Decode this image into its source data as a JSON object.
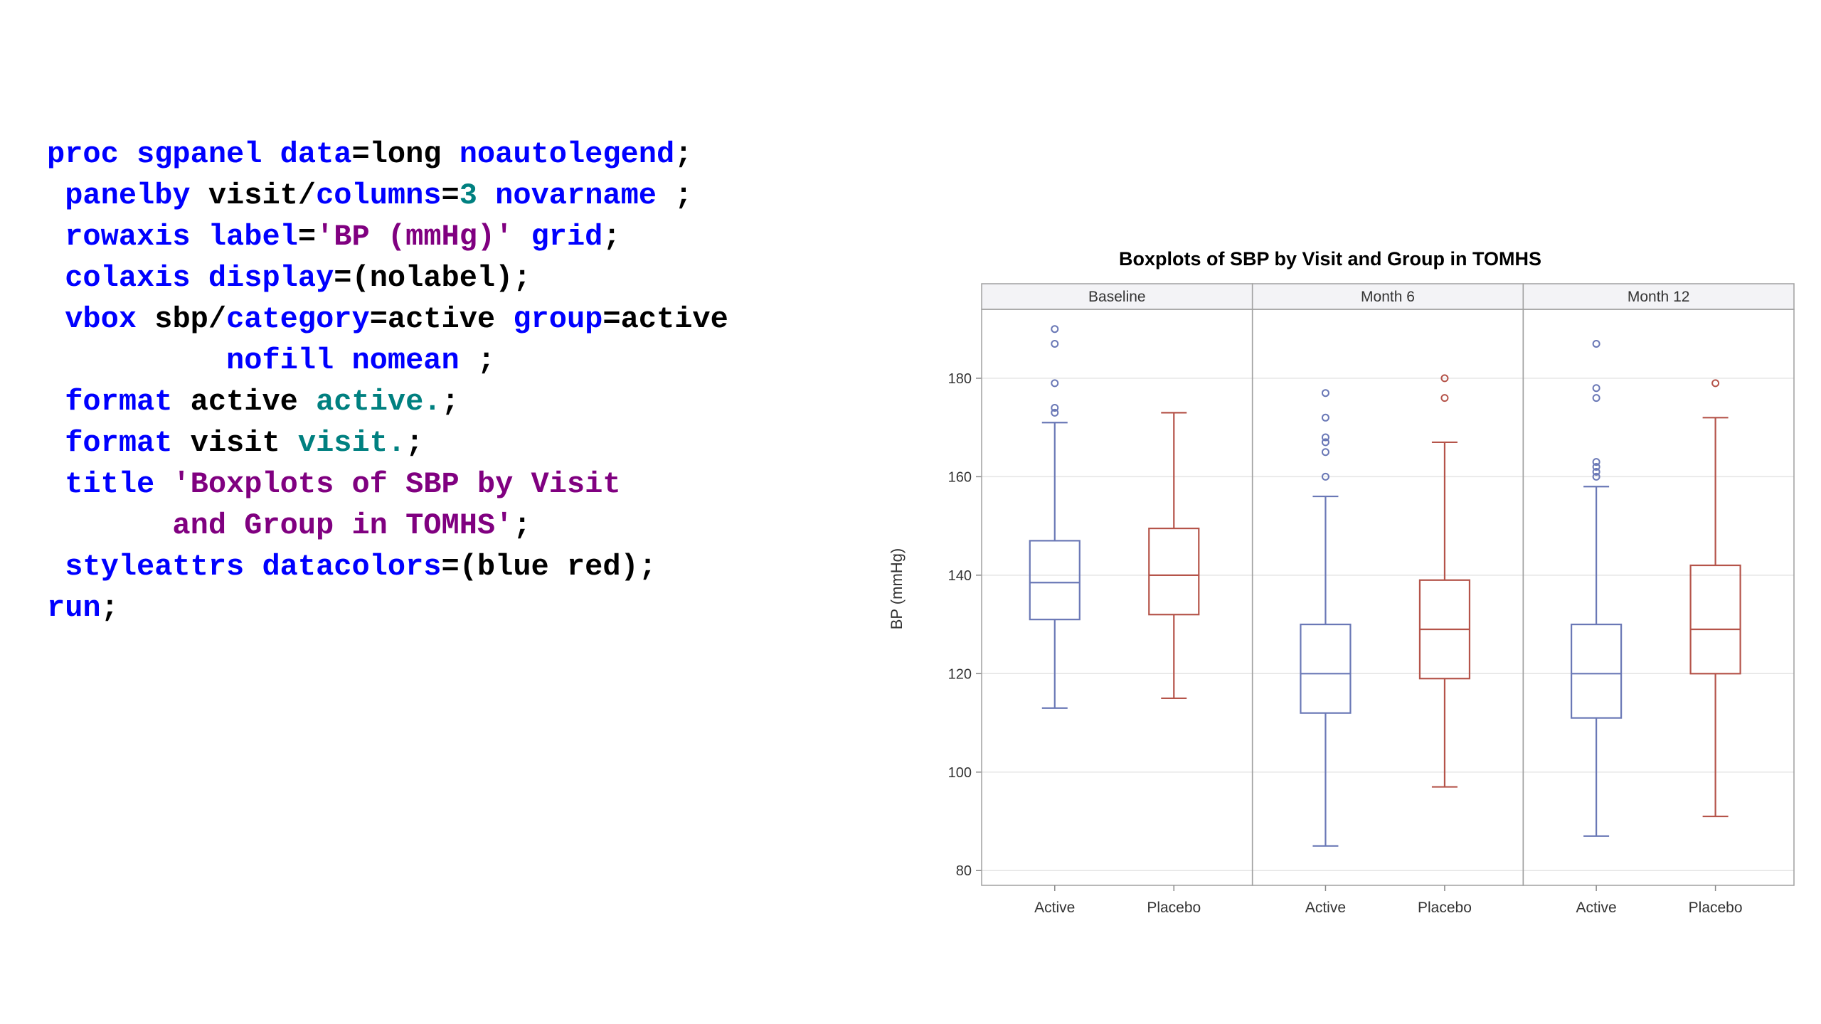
{
  "code": {
    "lines": [
      [
        {
          "t": "proc sgpanel ",
          "c": "kw"
        },
        {
          "t": "data",
          "c": "kw"
        },
        {
          "t": "=long ",
          "c": "pl"
        },
        {
          "t": "noautolegend",
          "c": "kw"
        },
        {
          "t": ";",
          "c": "pl"
        }
      ],
      [
        {
          "t": " panelby ",
          "c": "kw"
        },
        {
          "t": "visit/",
          "c": "pl"
        },
        {
          "t": "columns",
          "c": "kw"
        },
        {
          "t": "=",
          "c": "pl"
        },
        {
          "t": "3",
          "c": "num"
        },
        {
          "t": " ",
          "c": "pl"
        },
        {
          "t": "novarname",
          "c": "kw"
        },
        {
          "t": " ;",
          "c": "pl"
        }
      ],
      [
        {
          "t": " rowaxis ",
          "c": "kw"
        },
        {
          "t": "label",
          "c": "kw"
        },
        {
          "t": "=",
          "c": "pl"
        },
        {
          "t": "'BP (mmHg)'",
          "c": "str"
        },
        {
          "t": " ",
          "c": "pl"
        },
        {
          "t": "grid",
          "c": "kw"
        },
        {
          "t": ";",
          "c": "pl"
        }
      ],
      [
        {
          "t": " colaxis ",
          "c": "kw"
        },
        {
          "t": "display",
          "c": "kw"
        },
        {
          "t": "=(nolabel);",
          "c": "pl"
        }
      ],
      [
        {
          "t": " vbox ",
          "c": "kw"
        },
        {
          "t": "sbp/",
          "c": "pl"
        },
        {
          "t": "category",
          "c": "kw"
        },
        {
          "t": "=active ",
          "c": "pl"
        },
        {
          "t": "group",
          "c": "kw"
        },
        {
          "t": "=active",
          "c": "pl"
        }
      ],
      [
        {
          "t": "          nofill nomean",
          "c": "kw"
        },
        {
          "t": " ;",
          "c": "pl"
        }
      ],
      [
        {
          "t": " format ",
          "c": "kw"
        },
        {
          "t": "active ",
          "c": "pl"
        },
        {
          "t": "active.",
          "c": "fmt"
        },
        {
          "t": ";",
          "c": "pl"
        }
      ],
      [
        {
          "t": " format ",
          "c": "kw"
        },
        {
          "t": "visit ",
          "c": "pl"
        },
        {
          "t": "visit.",
          "c": "fmt"
        },
        {
          "t": ";",
          "c": "pl"
        }
      ],
      [
        {
          "t": " title ",
          "c": "kw"
        },
        {
          "t": "'Boxplots of SBP by Visit",
          "c": "str"
        }
      ],
      [
        {
          "t": "       and Group in TOMHS'",
          "c": "str"
        },
        {
          "t": ";",
          "c": "pl"
        }
      ],
      [
        {
          "t": " styleattrs ",
          "c": "kw"
        },
        {
          "t": "datacolors",
          "c": "kw"
        },
        {
          "t": "=(blue red);",
          "c": "pl"
        }
      ],
      [
        {
          "t": "run",
          "c": "kw"
        },
        {
          "t": ";",
          "c": "pl"
        }
      ]
    ]
  },
  "chart_data": {
    "type": "box",
    "title": "Boxplots of SBP by Visit and Group in TOMHS",
    "ylabel": "BP (mmHg)",
    "xlabel": "",
    "ylim": [
      77,
      194
    ],
    "yticks": [
      80,
      100,
      120,
      140,
      160,
      180
    ],
    "grid": true,
    "categories": [
      "Active",
      "Placebo"
    ],
    "colors": {
      "Active": "#6a78b6",
      "Placebo": "#b5544a"
    },
    "panels": [
      {
        "label": "Baseline",
        "boxes": [
          {
            "category": "Active",
            "min": 113,
            "q1": 131,
            "median": 138.5,
            "q3": 147,
            "max": 171,
            "outliers": [
              173,
              174,
              179,
              187,
              190
            ]
          },
          {
            "category": "Placebo",
            "min": 115,
            "q1": 132,
            "median": 140,
            "q3": 149.5,
            "max": 173,
            "outliers": []
          }
        ]
      },
      {
        "label": "Month 6",
        "boxes": [
          {
            "category": "Active",
            "min": 85,
            "q1": 112,
            "median": 120,
            "q3": 130,
            "max": 156,
            "outliers": [
              160,
              165,
              167,
              168,
              172,
              177
            ]
          },
          {
            "category": "Placebo",
            "min": 97,
            "q1": 119,
            "median": 129,
            "q3": 139,
            "max": 167,
            "outliers": [
              176,
              180
            ]
          }
        ]
      },
      {
        "label": "Month 12",
        "boxes": [
          {
            "category": "Active",
            "min": 87,
            "q1": 111,
            "median": 120,
            "q3": 130,
            "max": 158,
            "outliers": [
              160,
              161,
              162,
              163,
              176,
              178,
              187
            ]
          },
          {
            "category": "Placebo",
            "min": 91,
            "q1": 120,
            "median": 129,
            "q3": 142,
            "max": 172,
            "outliers": [
              179
            ]
          }
        ]
      }
    ]
  }
}
